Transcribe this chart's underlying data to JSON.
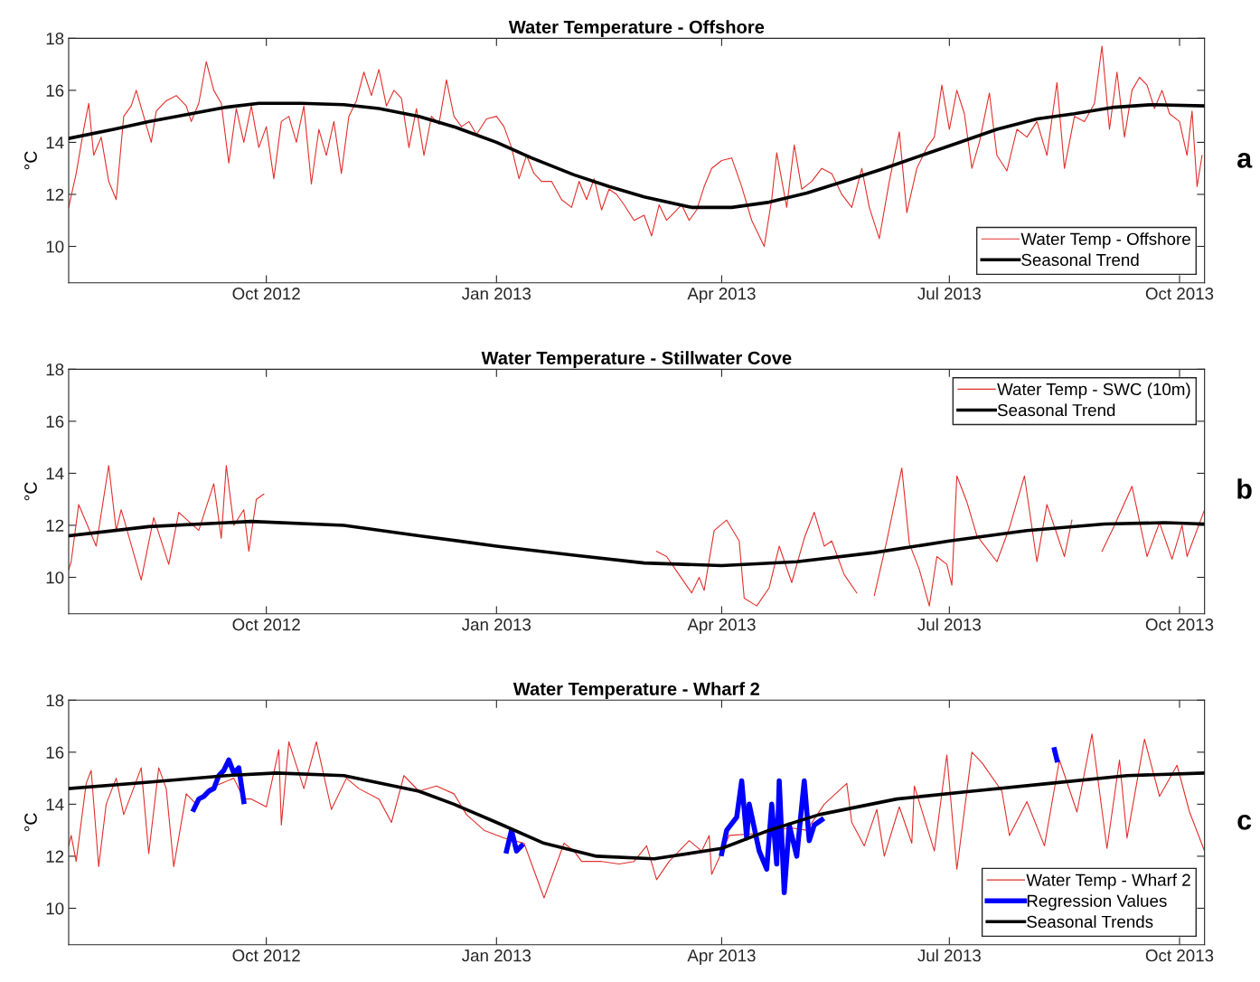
{
  "chart_data": [
    {
      "type": "line",
      "title": "Water Temperature - Offshore",
      "ylabel": "°C",
      "annotations": [
        "a"
      ],
      "legend": "bottom right",
      "xlim": [
        "2012-07-14",
        "2013-10-11"
      ],
      "xticks": [
        {
          "value": "2012-10-01",
          "label": "Oct 2012"
        },
        {
          "value": "2013-01-01",
          "label": "Jan 2013"
        },
        {
          "value": "2013-04-01",
          "label": "Apr 2013"
        },
        {
          "value": "2013-07-01",
          "label": "Jul 2013"
        },
        {
          "value": "2013-10-01",
          "label": "Oct 2013"
        }
      ],
      "ylim": [
        8.6,
        18
      ],
      "yticks": [
        10,
        12,
        14,
        16,
        18
      ],
      "series": [
        {
          "name": "Water Temp - Offshore",
          "color": "#e0302c",
          "x": [
            "2012-07-14",
            "2012-07-17",
            "2012-07-20",
            "2012-07-22",
            "2012-07-24",
            "2012-07-27",
            "2012-07-30",
            "2012-08-02",
            "2012-08-05",
            "2012-08-08",
            "2012-08-10",
            "2012-08-13",
            "2012-08-16",
            "2012-08-18",
            "2012-08-22",
            "2012-08-26",
            "2012-08-30",
            "2012-09-01",
            "2012-09-04",
            "2012-09-07",
            "2012-09-10",
            "2012-09-13",
            "2012-09-16",
            "2012-09-19",
            "2012-09-22",
            "2012-09-25",
            "2012-09-28",
            "2012-10-01",
            "2012-10-04",
            "2012-10-07",
            "2012-10-10",
            "2012-10-13",
            "2012-10-16",
            "2012-10-19",
            "2012-10-22",
            "2012-10-25",
            "2012-10-28",
            "2012-10-31",
            "2012-11-03",
            "2012-11-06",
            "2012-11-09",
            "2012-11-12",
            "2012-11-15",
            "2012-11-18",
            "2012-11-21",
            "2012-11-24",
            "2012-11-27",
            "2012-11-30",
            "2012-12-03",
            "2012-12-06",
            "2012-12-09",
            "2012-12-12",
            "2012-12-15",
            "2012-12-18",
            "2012-12-21",
            "2012-12-24",
            "2012-12-28",
            "2013-01-01",
            "2013-01-04",
            "2013-01-07",
            "2013-01-10",
            "2013-01-13",
            "2013-01-16",
            "2013-01-19",
            "2013-01-23",
            "2013-01-27",
            "2013-01-31",
            "2013-02-03",
            "2013-02-06",
            "2013-02-09",
            "2013-02-12",
            "2013-02-15",
            "2013-02-18",
            "2013-02-21",
            "2013-02-25",
            "2013-03-01",
            "2013-03-04",
            "2013-03-07",
            "2013-03-10",
            "2013-03-13",
            "2013-03-16",
            "2013-03-19",
            "2013-03-22",
            "2013-03-25",
            "2013-03-28",
            "2013-04-01",
            "2013-04-05",
            "2013-04-09",
            "2013-04-13",
            "2013-04-18",
            "2013-04-21",
            "2013-04-23",
            "2013-04-27",
            "2013-04-30",
            "2013-05-03",
            "2013-05-07",
            "2013-05-11",
            "2013-05-15",
            "2013-05-19",
            "2013-05-23",
            "2013-05-27",
            "2013-05-30",
            "2013-06-03",
            "2013-06-07",
            "2013-06-11",
            "2013-06-14",
            "2013-06-18",
            "2013-06-22",
            "2013-06-25",
            "2013-06-28",
            "2013-07-01",
            "2013-07-04",
            "2013-07-07",
            "2013-07-10",
            "2013-07-13",
            "2013-07-17",
            "2013-07-20",
            "2013-07-24",
            "2013-07-28",
            "2013-08-01",
            "2013-08-05",
            "2013-08-09",
            "2013-08-13",
            "2013-08-16",
            "2013-08-20",
            "2013-08-24",
            "2013-08-28",
            "2013-08-31",
            "2013-09-03",
            "2013-09-06",
            "2013-09-09",
            "2013-09-12",
            "2013-09-15",
            "2013-09-18",
            "2013-09-21",
            "2013-09-24",
            "2013-09-27",
            "2013-10-01",
            "2013-10-04",
            "2013-10-06",
            "2013-10-08",
            "2013-10-10"
          ],
          "values": [
            11.5,
            12.8,
            14.5,
            15.5,
            13.5,
            14.2,
            12.5,
            11.8,
            15.0,
            15.4,
            16.0,
            15.0,
            14.0,
            15.2,
            15.6,
            15.8,
            15.4,
            14.8,
            15.5,
            17.1,
            16.0,
            15.5,
            13.2,
            15.3,
            14.0,
            15.4,
            13.8,
            14.6,
            12.6,
            14.8,
            15.0,
            14.0,
            15.4,
            12.4,
            14.5,
            13.5,
            14.8,
            12.8,
            15.0,
            15.6,
            16.7,
            15.8,
            16.8,
            15.4,
            16.0,
            15.7,
            13.8,
            15.3,
            13.5,
            15.0,
            14.7,
            16.4,
            15.0,
            14.6,
            14.8,
            14.3,
            14.9,
            15.0,
            14.6,
            13.8,
            12.6,
            13.5,
            12.8,
            12.5,
            12.5,
            11.8,
            11.5,
            12.5,
            11.8,
            12.6,
            11.4,
            12.2,
            12.0,
            11.6,
            11.0,
            11.2,
            10.4,
            11.6,
            11.0,
            11.3,
            11.6,
            11.0,
            11.4,
            12.3,
            13.0,
            13.3,
            13.4,
            12.3,
            11.0,
            10.0,
            11.8,
            13.6,
            11.5,
            13.9,
            12.2,
            12.5,
            13.0,
            12.8,
            12.0,
            11.5,
            13.0,
            11.5,
            10.3,
            12.5,
            14.4,
            11.3,
            13.0,
            13.8,
            14.2,
            16.2,
            14.5,
            16.0,
            15.1,
            13.0,
            14.0,
            15.9,
            13.5,
            12.9,
            14.5,
            14.2,
            14.8,
            13.5,
            16.3,
            13.0,
            15.0,
            14.8,
            15.5,
            17.7,
            14.5,
            16.7,
            14.2,
            16.0,
            16.5,
            16.2,
            15.3,
            16.0,
            15.1,
            14.8,
            13.5,
            15.2,
            12.3,
            13.5
          ]
        },
        {
          "name": "Seasonal Trend",
          "color": "#000000",
          "x": [
            "2012-07-14",
            "2012-08-01",
            "2012-08-15",
            "2012-09-01",
            "2012-09-15",
            "2012-09-28",
            "2012-10-15",
            "2012-11-01",
            "2012-11-15",
            "2012-12-01",
            "2012-12-15",
            "2013-01-01",
            "2013-01-15",
            "2013-02-01",
            "2013-02-15",
            "2013-03-01",
            "2013-03-20",
            "2013-04-05",
            "2013-04-20",
            "2013-05-05",
            "2013-05-20",
            "2013-06-05",
            "2013-06-20",
            "2013-07-05",
            "2013-07-20",
            "2013-08-05",
            "2013-08-20",
            "2013-09-05",
            "2013-09-20",
            "2013-10-11"
          ],
          "values": [
            14.15,
            14.5,
            14.8,
            15.1,
            15.35,
            15.5,
            15.5,
            15.45,
            15.3,
            15.0,
            14.6,
            14.0,
            13.4,
            12.75,
            12.3,
            11.9,
            11.5,
            11.5,
            11.7,
            12.05,
            12.5,
            13.0,
            13.5,
            14.0,
            14.5,
            14.9,
            15.1,
            15.35,
            15.45,
            15.4
          ]
        }
      ]
    },
    {
      "type": "line",
      "title": "Water Temperature - Stillwater Cove",
      "ylabel": "°C",
      "annotations": [
        "b"
      ],
      "legend": "top right",
      "xlim": [
        "2012-07-14",
        "2013-10-11"
      ],
      "xticks": [
        {
          "value": "2012-10-01",
          "label": "Oct 2012"
        },
        {
          "value": "2013-01-01",
          "label": "Jan 2013"
        },
        {
          "value": "2013-04-01",
          "label": "Apr 2013"
        },
        {
          "value": "2013-07-01",
          "label": "Jul 2013"
        },
        {
          "value": "2013-10-01",
          "label": "Oct 2013"
        }
      ],
      "ylim": [
        8.6,
        18
      ],
      "yticks": [
        10,
        12,
        14,
        16,
        18
      ],
      "series": [
        {
          "name": "Water Temp - SWC (10m)",
          "color": "#e0302c",
          "x": [
            "2012-07-14",
            "2012-07-15",
            "2012-07-18",
            "2012-07-25",
            "2012-07-30",
            "2012-08-02",
            "2012-08-04",
            "2012-08-12",
            "2012-08-17",
            "2012-08-23",
            "2012-08-27",
            "2012-09-04",
            "2012-09-10",
            "2012-09-13",
            "2012-09-15",
            "2012-09-18",
            "2012-09-22",
            "2012-09-24",
            "2012-09-27",
            "2012-09-30",
            "2012-10-15",
            "2013-03-06",
            "2013-03-10",
            "2013-03-15",
            "2013-03-20",
            "2013-03-23",
            "2013-03-25",
            "2013-03-29",
            "2013-04-03",
            "2013-04-08",
            "2013-04-10",
            "2013-04-15",
            "2013-04-20",
            "2013-04-24",
            "2013-04-29",
            "2013-05-04",
            "2013-05-08",
            "2013-05-12",
            "2013-05-15",
            "2013-05-20",
            "2013-05-25",
            "2013-05-28",
            "2013-06-01",
            "2013-06-06",
            "2013-06-12",
            "2013-06-15",
            "2013-06-19",
            "2013-06-23",
            "2013-06-26",
            "2013-06-30",
            "2013-07-02",
            "2013-07-04",
            "2013-07-08",
            "2013-07-12",
            "2013-07-20",
            "2013-07-25",
            "2013-07-31",
            "2013-08-05",
            "2013-08-09",
            "2013-08-16",
            "2013-08-19",
            "2013-08-25",
            "2013-08-31",
            "2013-09-05",
            "2013-09-12",
            "2013-09-18",
            "2013-09-23",
            "2013-09-28",
            "2013-10-02",
            "2013-10-04",
            "2013-10-11"
          ],
          "values": [
            10.3,
            10.6,
            12.8,
            11.2,
            14.3,
            11.8,
            12.6,
            9.9,
            12.3,
            10.5,
            12.5,
            11.8,
            13.6,
            11.5,
            14.3,
            12.0,
            12.6,
            11.0,
            13.0,
            13.2,
            null,
            11.0,
            10.8,
            10.1,
            9.4,
            10.0,
            9.5,
            11.8,
            12.2,
            11.4,
            9.2,
            8.9,
            9.6,
            11.2,
            9.8,
            11.5,
            12.5,
            11.2,
            11.4,
            10.1,
            9.4,
            null,
            9.3,
            11.4,
            14.2,
            11.3,
            10.3,
            8.9,
            10.8,
            10.5,
            9.7,
            13.9,
            12.9,
            11.6,
            10.6,
            11.9,
            13.9,
            10.6,
            12.8,
            10.8,
            12.2,
            null,
            11.0,
            12.0,
            13.5,
            10.8,
            12.1,
            10.7,
            12.0,
            10.8,
            12.6
          ]
        },
        {
          "name": "Seasonal Trend",
          "color": "#000000",
          "x": [
            "2012-07-14",
            "2012-08-15",
            "2012-09-25",
            "2012-11-01",
            "2012-12-01",
            "2013-01-01",
            "2013-02-01",
            "2013-03-01",
            "2013-04-01",
            "2013-05-01",
            "2013-06-01",
            "2013-07-01",
            "2013-08-01",
            "2013-09-01",
            "2013-09-25",
            "2013-10-11"
          ],
          "values": [
            11.6,
            11.95,
            12.15,
            12.0,
            11.6,
            11.2,
            10.85,
            10.55,
            10.45,
            10.6,
            10.95,
            11.4,
            11.8,
            12.05,
            12.1,
            12.05
          ]
        }
      ]
    },
    {
      "type": "line",
      "title": "Water Temperature - Wharf 2",
      "ylabel": "°C",
      "annotations": [
        "c"
      ],
      "legend": "bottom right",
      "xlim": [
        "2012-07-14",
        "2013-10-11"
      ],
      "xticks": [
        {
          "value": "2012-10-01",
          "label": "Oct 2012"
        },
        {
          "value": "2013-01-01",
          "label": "Jan 2013"
        },
        {
          "value": "2013-04-01",
          "label": "Apr 2013"
        },
        {
          "value": "2013-07-01",
          "label": "Jul 2013"
        },
        {
          "value": "2013-10-01",
          "label": "Oct 2013"
        }
      ],
      "ylim": [
        8.6,
        18
      ],
      "yticks": [
        10,
        12,
        14,
        16,
        18
      ],
      "series": [
        {
          "name": "Water Temp - Wharf 2",
          "color": "#e0302c",
          "x": [
            "2012-07-14",
            "2012-07-15",
            "2012-07-17",
            "2012-07-21",
            "2012-07-23",
            "2012-07-26",
            "2012-07-29",
            "2012-08-02",
            "2012-08-05",
            "2012-08-12",
            "2012-08-15",
            "2012-08-19",
            "2012-08-22",
            "2012-08-25",
            "2012-08-30",
            "2012-09-03",
            "2012-09-08",
            "2012-09-18",
            "2012-09-22",
            "2012-09-25",
            "2012-10-01",
            "2012-10-06",
            "2012-10-07",
            "2012-10-10",
            "2012-10-16",
            "2012-10-21",
            "2012-10-27",
            "2012-11-02",
            "2012-11-07",
            "2012-11-15",
            "2012-11-20",
            "2012-11-25",
            "2012-12-01",
            "2012-12-08",
            "2012-12-15",
            "2012-12-20",
            "2012-12-27",
            "2013-01-04",
            "2013-01-12",
            "2013-01-20",
            "2013-01-28",
            "2013-02-01",
            "2013-02-04",
            "2013-02-12",
            "2013-02-19",
            "2013-02-25",
            "2013-03-02",
            "2013-03-06",
            "2013-03-11",
            "2013-03-19",
            "2013-03-24",
            "2013-03-27",
            "2013-03-28",
            "2013-04-04",
            "2013-04-20",
            "2013-04-28",
            "2013-05-05",
            "2013-05-12",
            "2013-05-21",
            "2013-05-23",
            "2013-05-28",
            "2013-06-02",
            "2013-06-05",
            "2013-06-11",
            "2013-06-16",
            "2013-06-17",
            "2013-06-25",
            "2013-06-30",
            "2013-07-04",
            "2013-07-10",
            "2013-07-14",
            "2013-07-22",
            "2013-07-25",
            "2013-08-01",
            "2013-08-08",
            "2013-08-14",
            "2013-08-21",
            "2013-08-27",
            "2013-09-02",
            "2013-09-07",
            "2013-09-10",
            "2013-09-17",
            "2013-09-23",
            "2013-09-30",
            "2013-10-05",
            "2013-10-11"
          ],
          "values": [
            12.4,
            12.8,
            11.8,
            14.8,
            15.3,
            11.6,
            14.0,
            15.0,
            13.6,
            15.4,
            12.1,
            15.4,
            14.6,
            11.6,
            14.4,
            14.0,
            14.6,
            15.0,
            14.2,
            14.2,
            13.9,
            16.1,
            13.2,
            16.4,
            14.6,
            16.4,
            13.8,
            15.0,
            14.6,
            14.2,
            13.3,
            15.1,
            14.5,
            14.7,
            14.4,
            13.6,
            13.0,
            12.7,
            12.5,
            10.4,
            12.5,
            12.2,
            11.8,
            11.8,
            11.7,
            11.8,
            12.4,
            11.1,
            11.8,
            12.6,
            12.2,
            12.8,
            11.3,
            12.8,
            12.9,
            13.1,
            13.0,
            14.0,
            14.8,
            13.3,
            12.4,
            13.8,
            12.0,
            13.9,
            12.5,
            14.7,
            12.2,
            15.9,
            11.5,
            16.0,
            15.6,
            14.5,
            12.8,
            14.1,
            12.4,
            15.7,
            13.7,
            16.7,
            12.3,
            15.7,
            12.7,
            16.5,
            14.3,
            15.5,
            13.7,
            12.2
          ]
        },
        {
          "name": "Regression Values",
          "color": "#0000ff",
          "x": [
            "2012-09-02",
            "2012-09-04",
            "2012-09-06",
            "2012-09-08",
            "2012-09-10",
            "2012-09-12",
            "2012-09-14",
            "2012-09-16",
            "2012-09-18",
            "2012-09-20",
            "2012-09-22",
            "2012-10-15",
            "2013-01-05",
            "2013-01-07",
            "2013-01-09",
            "2013-01-11",
            "2013-02-01",
            "2013-04-01",
            "2013-04-03",
            "2013-04-07",
            "2013-04-09",
            "2013-04-11",
            "2013-04-12",
            "2013-04-16",
            "2013-04-19",
            "2013-04-21",
            "2013-04-23",
            "2013-04-24",
            "2013-04-26",
            "2013-04-28",
            "2013-05-01",
            "2013-05-04",
            "2013-05-06",
            "2013-05-08",
            "2013-05-11",
            "2013-06-01",
            "2013-08-12",
            "2013-08-13"
          ],
          "values": [
            13.8,
            14.2,
            14.3,
            14.5,
            14.6,
            15.1,
            15.3,
            15.7,
            15.2,
            15.4,
            14.1,
            null,
            12.2,
            13.0,
            12.2,
            12.4,
            null,
            12.1,
            13.0,
            13.5,
            14.9,
            12.7,
            14.0,
            12.2,
            11.5,
            14.0,
            11.7,
            14.9,
            10.6,
            13.2,
            12.0,
            14.9,
            12.6,
            13.2,
            13.4,
            null,
            16.1,
            15.7
          ]
        },
        {
          "name": "Seasonal Trends",
          "color": "#000000",
          "x": [
            "2012-07-14",
            "2012-08-15",
            "2012-09-15",
            "2012-10-05",
            "2012-11-01",
            "2012-12-01",
            "2012-12-15",
            "2013-01-01",
            "2013-01-20",
            "2013-02-10",
            "2013-03-05",
            "2013-04-01",
            "2013-04-20",
            "2013-05-10",
            "2013-06-10",
            "2013-07-10",
            "2013-08-10",
            "2013-09-10",
            "2013-10-11"
          ],
          "values": [
            14.6,
            14.85,
            15.1,
            15.2,
            15.1,
            14.5,
            14.0,
            13.3,
            12.5,
            12.0,
            11.9,
            12.3,
            13.0,
            13.6,
            14.2,
            14.5,
            14.8,
            15.1,
            15.2
          ]
        }
      ]
    }
  ]
}
